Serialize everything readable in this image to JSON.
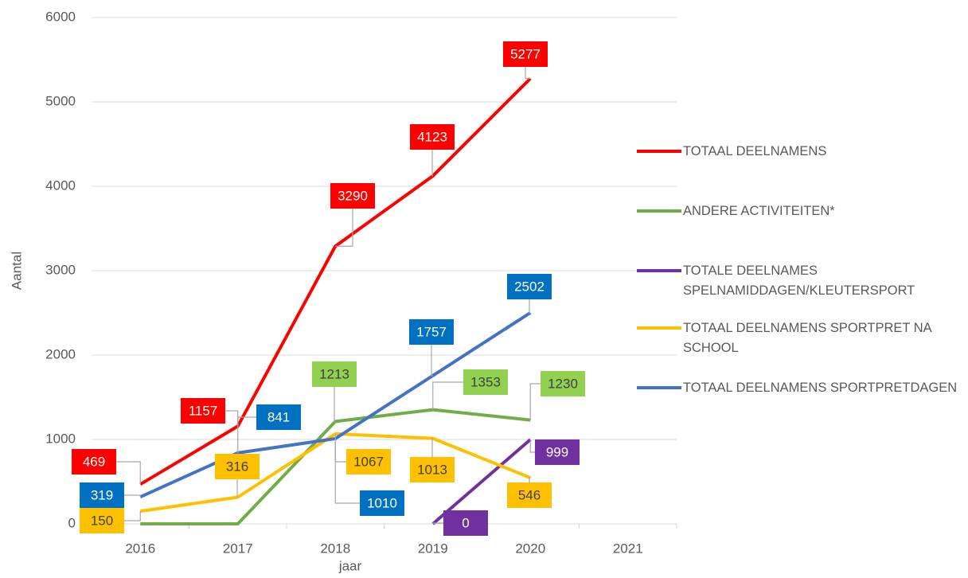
{
  "chart_data": {
    "type": "line",
    "x_label": "jaar",
    "y_label": "Aantal",
    "categories": [
      "2016",
      "2017",
      "2018",
      "2019",
      "2020",
      "2021"
    ],
    "ylim": [
      0,
      6000
    ],
    "yticks": [
      0,
      1000,
      2000,
      3000,
      4000,
      5000,
      6000
    ],
    "grid": true,
    "legend": "right",
    "series": [
      {
        "name": "TOTAAL DEELNAMENS",
        "color": "#ff0000",
        "values": [
          469,
          1157,
          3290,
          4123,
          5277,
          null
        ]
      },
      {
        "name": "ANDERE ACTIVITEITEN*",
        "color": "#70ad47",
        "values": [
          0,
          0,
          1213,
          1353,
          1230,
          null
        ]
      },
      {
        "name": "TOTALE DEELNAMES SPELNAMIDDAGEN/KLEUTERSPORT",
        "color": "#7030a0",
        "values": [
          null,
          null,
          null,
          0,
          999,
          null
        ]
      },
      {
        "name": "TOTAAL DEELNAMENS SPORTPRET NA SCHOOL",
        "color": "#ffc000",
        "values": [
          150,
          316,
          1067,
          1013,
          546,
          null
        ]
      },
      {
        "name": "TOTAAL DEELNAMENS SPORTPRETDAGEN",
        "color": "#4472c4",
        "values": [
          319,
          841,
          1010,
          1757,
          2502,
          null
        ]
      }
    ]
  }
}
